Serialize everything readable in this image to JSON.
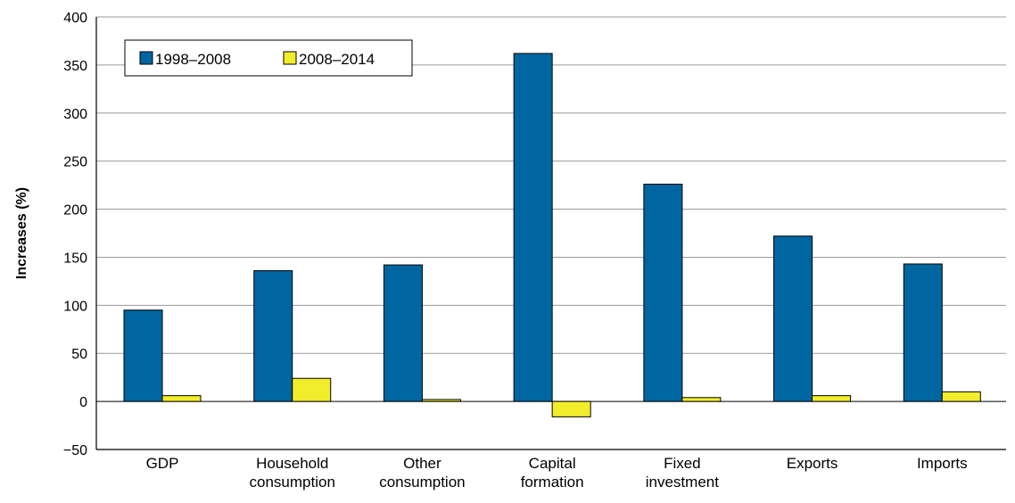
{
  "chart_data": {
    "type": "bar",
    "ylabel": "Increases (%)",
    "xlabel": "",
    "ylim": [
      -50,
      400
    ],
    "yticks": [
      -50,
      0,
      50,
      100,
      150,
      200,
      250,
      300,
      350,
      400
    ],
    "ytick_labels": [
      "−50",
      "0",
      "50",
      "100",
      "150",
      "200",
      "250",
      "300",
      "350",
      "400"
    ],
    "grid": true,
    "legend_position": "top-left",
    "categories": [
      [
        "GDP"
      ],
      [
        "Household",
        "consumption"
      ],
      [
        "Other",
        "consumption"
      ],
      [
        "Capital",
        "formation"
      ],
      [
        "Fixed",
        "investment"
      ],
      [
        "Exports"
      ],
      [
        "Imports"
      ]
    ],
    "series": [
      {
        "name": "1998–2008",
        "color": "#0066a1",
        "values": [
          95,
          136,
          142,
          362,
          226,
          172,
          143
        ]
      },
      {
        "name": "2008–2014",
        "color": "#f2ed2b",
        "values": [
          6,
          24,
          2,
          -16,
          4,
          6,
          10
        ]
      }
    ]
  }
}
